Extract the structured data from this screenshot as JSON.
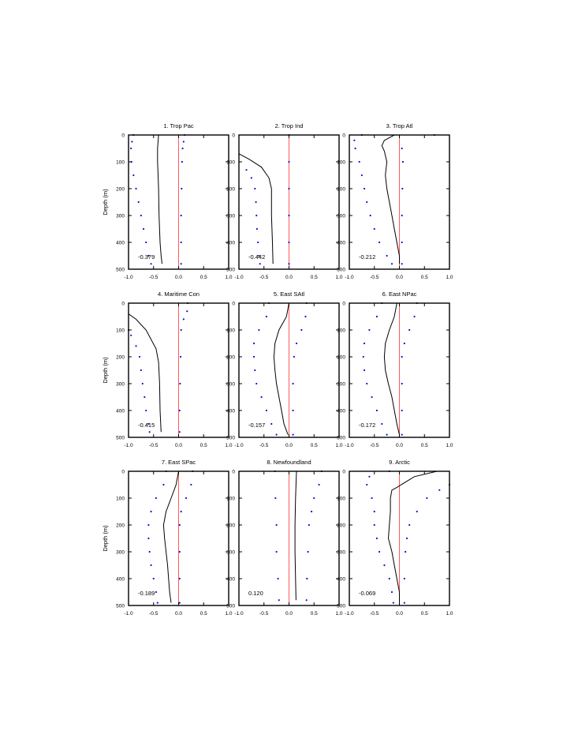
{
  "figure": {
    "ylabel": "Depth (m)",
    "xticks": [
      "-1.0",
      "-0.5",
      "0.0",
      "0.5",
      "1.0"
    ],
    "yticks": [
      "0",
      "100",
      "200",
      "300",
      "400",
      "500"
    ]
  },
  "chart_data": [
    {
      "type": "line",
      "title": "1. Trop Pac",
      "annotation": "-0.379",
      "xlim": [
        -1,
        1
      ],
      "ylim": [
        500,
        0
      ],
      "mean": [
        [
          -0.4,
          0
        ],
        [
          -0.42,
          50
        ],
        [
          -0.42,
          100
        ],
        [
          -0.41,
          150
        ],
        [
          -0.4,
          200
        ],
        [
          -0.39,
          300
        ],
        [
          -0.37,
          400
        ],
        [
          -0.35,
          450
        ],
        [
          -0.33,
          480
        ]
      ],
      "lower": [
        [
          -0.9,
          0
        ],
        [
          -0.93,
          25
        ],
        [
          -0.95,
          50
        ],
        [
          -0.94,
          100
        ],
        [
          -0.9,
          150
        ],
        [
          -0.85,
          200
        ],
        [
          -0.8,
          250
        ],
        [
          -0.75,
          300
        ],
        [
          -0.7,
          350
        ],
        [
          -0.65,
          400
        ],
        [
          -0.6,
          450
        ],
        [
          -0.55,
          480
        ]
      ],
      "upper": [
        [
          0.12,
          0
        ],
        [
          0.1,
          25
        ],
        [
          0.08,
          50
        ],
        [
          0.07,
          100
        ],
        [
          0.06,
          200
        ],
        [
          0.05,
          300
        ],
        [
          0.05,
          400
        ],
        [
          0.05,
          480
        ]
      ]
    },
    {
      "type": "line",
      "title": "2. Trop Ind",
      "annotation": "-0.442",
      "xlim": [
        -1,
        1
      ],
      "ylim": [
        500,
        0
      ],
      "mean": [
        [
          -1.0,
          70
        ],
        [
          -0.8,
          90
        ],
        [
          -0.55,
          120
        ],
        [
          -0.4,
          160
        ],
        [
          -0.35,
          200
        ],
        [
          -0.35,
          300
        ],
        [
          -0.33,
          400
        ],
        [
          -0.32,
          480
        ]
      ],
      "lower": [
        [
          -0.85,
          130
        ],
        [
          -0.75,
          160
        ],
        [
          -0.68,
          200
        ],
        [
          -0.66,
          250
        ],
        [
          -0.65,
          300
        ],
        [
          -0.64,
          350
        ],
        [
          -0.62,
          400
        ],
        [
          -0.6,
          450
        ],
        [
          -0.58,
          480
        ]
      ],
      "upper": [
        [
          0.0,
          0
        ],
        [
          0.0,
          100
        ],
        [
          0.0,
          200
        ],
        [
          0.0,
          300
        ],
        [
          0.0,
          400
        ],
        [
          0.0,
          480
        ]
      ]
    },
    {
      "type": "line",
      "title": "3. Trop Atl",
      "annotation": "-0.212",
      "xlim": [
        -1,
        1
      ],
      "ylim": [
        500,
        0
      ],
      "mean": [
        [
          -0.1,
          0
        ],
        [
          -0.3,
          20
        ],
        [
          -0.35,
          40
        ],
        [
          -0.3,
          60
        ],
        [
          -0.25,
          100
        ],
        [
          -0.28,
          150
        ],
        [
          -0.25,
          200
        ],
        [
          -0.2,
          250
        ],
        [
          -0.15,
          300
        ],
        [
          -0.1,
          350
        ],
        [
          -0.05,
          400
        ],
        [
          0.0,
          450
        ],
        [
          0.0,
          480
        ]
      ],
      "lower": [
        [
          -0.75,
          0
        ],
        [
          -0.9,
          20
        ],
        [
          -0.88,
          50
        ],
        [
          -0.8,
          100
        ],
        [
          -0.75,
          150
        ],
        [
          -0.7,
          200
        ],
        [
          -0.65,
          250
        ],
        [
          -0.58,
          300
        ],
        [
          -0.5,
          350
        ],
        [
          -0.4,
          400
        ],
        [
          -0.25,
          450
        ],
        [
          -0.15,
          480
        ]
      ],
      "upper": [
        [
          0.7,
          0
        ],
        [
          0.05,
          50
        ],
        [
          0.07,
          100
        ],
        [
          0.06,
          200
        ],
        [
          0.05,
          300
        ],
        [
          0.05,
          400
        ],
        [
          0.05,
          480
        ]
      ]
    },
    {
      "type": "line",
      "title": "4. Maritime Con",
      "annotation": "-0.415",
      "xlim": [
        -1,
        1
      ],
      "ylim": [
        500,
        0
      ],
      "mean": [
        [
          -1.0,
          40
        ],
        [
          -0.85,
          60
        ],
        [
          -0.65,
          100
        ],
        [
          -0.45,
          170
        ],
        [
          -0.4,
          220
        ],
        [
          -0.38,
          300
        ],
        [
          -0.37,
          400
        ],
        [
          -0.35,
          480
        ]
      ],
      "lower": [
        [
          -1.0,
          100
        ],
        [
          -0.95,
          120
        ],
        [
          -0.85,
          160
        ],
        [
          -0.78,
          200
        ],
        [
          -0.75,
          250
        ],
        [
          -0.72,
          300
        ],
        [
          -0.68,
          350
        ],
        [
          -0.65,
          400
        ],
        [
          -0.6,
          450
        ],
        [
          -0.58,
          480
        ]
      ],
      "upper": [
        [
          0.18,
          0
        ],
        [
          0.17,
          30
        ],
        [
          0.1,
          60
        ],
        [
          0.05,
          100
        ],
        [
          0.04,
          200
        ],
        [
          0.03,
          300
        ],
        [
          0.02,
          400
        ],
        [
          0.02,
          480
        ]
      ]
    },
    {
      "type": "line",
      "title": "5. East SAtl",
      "annotation": "-0.157",
      "xlim": [
        -1,
        1
      ],
      "ylim": [
        500,
        0
      ],
      "mean": [
        [
          0.0,
          0
        ],
        [
          -0.05,
          50
        ],
        [
          -0.2,
          100
        ],
        [
          -0.28,
          150
        ],
        [
          -0.3,
          200
        ],
        [
          -0.28,
          250
        ],
        [
          -0.25,
          300
        ],
        [
          -0.2,
          350
        ],
        [
          -0.15,
          400
        ],
        [
          -0.1,
          450
        ],
        [
          -0.02,
          490
        ]
      ],
      "lower": [
        [
          -0.4,
          0
        ],
        [
          -0.45,
          50
        ],
        [
          -0.6,
          100
        ],
        [
          -0.7,
          150
        ],
        [
          -0.7,
          200
        ],
        [
          -0.68,
          250
        ],
        [
          -0.65,
          300
        ],
        [
          -0.55,
          350
        ],
        [
          -0.45,
          400
        ],
        [
          -0.35,
          450
        ],
        [
          -0.25,
          490
        ]
      ],
      "upper": [
        [
          0.35,
          0
        ],
        [
          0.33,
          50
        ],
        [
          0.25,
          100
        ],
        [
          0.15,
          150
        ],
        [
          0.1,
          200
        ],
        [
          0.08,
          300
        ],
        [
          0.08,
          400
        ],
        [
          0.08,
          490
        ]
      ]
    },
    {
      "type": "line",
      "title": "6. East NPac",
      "annotation": "-0.172",
      "xlim": [
        -1,
        1
      ],
      "ylim": [
        500,
        0
      ],
      "mean": [
        [
          -0.05,
          0
        ],
        [
          -0.1,
          50
        ],
        [
          -0.2,
          100
        ],
        [
          -0.28,
          150
        ],
        [
          -0.3,
          200
        ],
        [
          -0.28,
          250
        ],
        [
          -0.22,
          300
        ],
        [
          -0.15,
          350
        ],
        [
          -0.1,
          400
        ],
        [
          -0.05,
          450
        ],
        [
          0.0,
          490
        ]
      ],
      "lower": [
        [
          -0.35,
          0
        ],
        [
          -0.45,
          50
        ],
        [
          -0.6,
          100
        ],
        [
          -0.7,
          150
        ],
        [
          -0.72,
          200
        ],
        [
          -0.7,
          250
        ],
        [
          -0.65,
          300
        ],
        [
          -0.55,
          350
        ],
        [
          -0.45,
          400
        ],
        [
          -0.35,
          450
        ],
        [
          -0.25,
          490
        ]
      ],
      "upper": [
        [
          0.35,
          0
        ],
        [
          0.3,
          50
        ],
        [
          0.2,
          100
        ],
        [
          0.1,
          150
        ],
        [
          0.05,
          200
        ],
        [
          0.05,
          300
        ],
        [
          0.05,
          400
        ],
        [
          0.05,
          490
        ]
      ]
    },
    {
      "type": "line",
      "title": "7. East SPac",
      "annotation": "-0.189",
      "xlim": [
        -1,
        1
      ],
      "ylim": [
        500,
        0
      ],
      "mean": [
        [
          0.0,
          0
        ],
        [
          -0.05,
          50
        ],
        [
          -0.15,
          100
        ],
        [
          -0.25,
          150
        ],
        [
          -0.3,
          200
        ],
        [
          -0.28,
          250
        ],
        [
          -0.25,
          300
        ],
        [
          -0.22,
          350
        ],
        [
          -0.2,
          400
        ],
        [
          -0.18,
          450
        ],
        [
          -0.15,
          490
        ]
      ],
      "lower": [
        [
          -0.25,
          0
        ],
        [
          -0.3,
          50
        ],
        [
          -0.45,
          100
        ],
        [
          -0.55,
          150
        ],
        [
          -0.6,
          200
        ],
        [
          -0.6,
          250
        ],
        [
          -0.58,
          300
        ],
        [
          -0.55,
          350
        ],
        [
          -0.5,
          400
        ],
        [
          -0.45,
          450
        ],
        [
          -0.42,
          490
        ]
      ],
      "upper": [
        [
          0.28,
          0
        ],
        [
          0.25,
          50
        ],
        [
          0.15,
          100
        ],
        [
          0.05,
          150
        ],
        [
          0.02,
          200
        ],
        [
          0.02,
          300
        ],
        [
          0.02,
          400
        ],
        [
          0.02,
          490
        ]
      ]
    },
    {
      "type": "line",
      "title": "8. Newfoundland",
      "annotation": "0.120",
      "xlim": [
        -1,
        1
      ],
      "ylim": [
        500,
        0
      ],
      "mean": [
        [
          0.15,
          0
        ],
        [
          0.13,
          100
        ],
        [
          0.12,
          200
        ],
        [
          0.12,
          300
        ],
        [
          0.13,
          400
        ],
        [
          0.14,
          480
        ]
      ],
      "lower": [
        [
          -0.28,
          0
        ],
        [
          -0.27,
          100
        ],
        [
          -0.25,
          200
        ],
        [
          -0.25,
          300
        ],
        [
          -0.22,
          400
        ],
        [
          -0.2,
          480
        ]
      ],
      "upper": [
        [
          0.65,
          0
        ],
        [
          0.6,
          50
        ],
        [
          0.5,
          100
        ],
        [
          0.45,
          150
        ],
        [
          0.4,
          200
        ],
        [
          0.38,
          300
        ],
        [
          0.36,
          400
        ],
        [
          0.35,
          480
        ]
      ]
    },
    {
      "type": "line",
      "title": "9. Arctic",
      "annotation": "-0.069",
      "xlim": [
        -1,
        1
      ],
      "ylim": [
        500,
        0
      ],
      "mean": [
        [
          0.75,
          0
        ],
        [
          0.3,
          20
        ],
        [
          -0.05,
          60
        ],
        [
          -0.15,
          70
        ],
        [
          -0.18,
          100
        ],
        [
          -0.18,
          150
        ],
        [
          -0.2,
          200
        ],
        [
          -0.22,
          250
        ],
        [
          -0.15,
          300
        ],
        [
          -0.1,
          350
        ],
        [
          -0.05,
          400
        ],
        [
          0.0,
          450
        ],
        [
          0.0,
          490
        ]
      ],
      "lower": [
        [
          -0.2,
          0
        ],
        [
          -0.6,
          20
        ],
        [
          -0.65,
          50
        ],
        [
          -0.55,
          100
        ],
        [
          -0.5,
          150
        ],
        [
          -0.5,
          200
        ],
        [
          -0.45,
          250
        ],
        [
          -0.4,
          300
        ],
        [
          -0.3,
          350
        ],
        [
          -0.2,
          400
        ],
        [
          -0.15,
          450
        ],
        [
          -0.12,
          490
        ]
      ],
      "upper": [
        [
          1.0,
          50
        ],
        [
          0.8,
          70
        ],
        [
          0.55,
          100
        ],
        [
          0.35,
          150
        ],
        [
          0.2,
          200
        ],
        [
          0.15,
          250
        ],
        [
          0.12,
          300
        ],
        [
          0.1,
          400
        ],
        [
          0.1,
          490
        ]
      ]
    }
  ]
}
